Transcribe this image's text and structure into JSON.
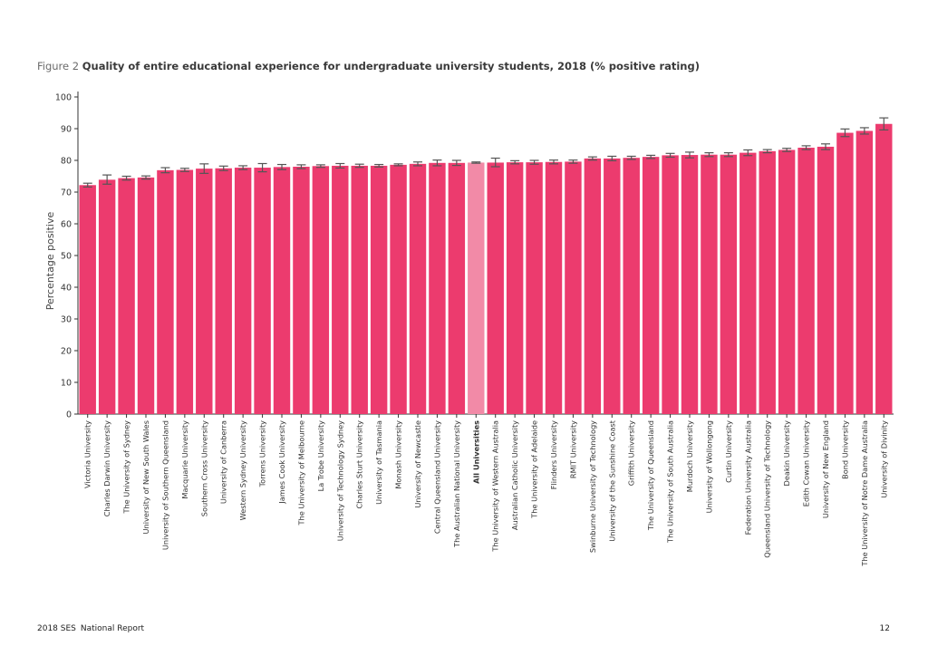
{
  "figure": {
    "number": "Figure 2",
    "title": "Quality of entire educational experience for undergraduate university students, 2018 (% positive rating)"
  },
  "footer": {
    "report": "2018 SES",
    "subtitle": "National Report",
    "page": "12"
  },
  "colors": {
    "bar": "#ec3b6e",
    "highlight": "#f28aa7",
    "error_bar": "#555555",
    "axis": "#333333"
  },
  "chart_data": {
    "type": "bar",
    "ylabel": "Percentage positive",
    "ylim": [
      0,
      100
    ],
    "yticks": [
      0,
      10,
      20,
      30,
      40,
      50,
      60,
      70,
      80,
      90,
      100
    ],
    "grid": false,
    "highlight_category": "All Universities",
    "categories": [
      "Victoria University",
      "Charles Darwin University",
      "The University of Sydney",
      "University of New South Wales",
      "University of Southern Queensland",
      "Macquarie University",
      "Southern Cross University",
      "University of Canberra",
      "Western Sydney University",
      "Torrens University",
      "James Cook University",
      "The University of Melbourne",
      "La Trobe University",
      "University of Technology Sydney",
      "Charles Sturt University",
      "University of Tasmania",
      "Monash University",
      "University of Newcastle",
      "Central Queensland University",
      "The Australian National University",
      "All Universities",
      "The University of Western Australia",
      "Australian Catholic University",
      "The University of Adelaide",
      "Flinders University",
      "RMIT University",
      "Swinburne University of Technology",
      "University of the Sunshine Coast",
      "Griffith University",
      "The University of Queensland",
      "The University of South Australia",
      "Murdoch University",
      "University of Wollongong",
      "Curtin University",
      "Federation University Australia",
      "Queensland University of Technology",
      "Deakin University",
      "Edith Cowan University",
      "University of New England",
      "Bond University",
      "The University of Notre Dame Australia",
      "University of Divinity"
    ],
    "values": [
      72.2,
      73.9,
      74.4,
      74.6,
      76.9,
      77.0,
      77.4,
      77.5,
      77.7,
      77.7,
      77.9,
      78.0,
      78.2,
      78.3,
      78.3,
      78.3,
      78.6,
      78.9,
      79.2,
      79.2,
      79.3,
      79.3,
      79.4,
      79.4,
      79.5,
      79.6,
      80.6,
      80.6,
      80.8,
      81.1,
      81.6,
      81.7,
      81.8,
      81.8,
      82.4,
      82.9,
      83.3,
      84.0,
      84.3,
      88.7,
      89.3,
      91.5
    ],
    "error_low": [
      71.6,
      72.5,
      73.8,
      74.1,
      76.1,
      76.5,
      75.9,
      76.8,
      77.1,
      76.4,
      77.1,
      77.4,
      77.8,
      77.6,
      77.8,
      77.9,
      78.3,
      78.3,
      78.3,
      78.4,
      79.1,
      78.0,
      78.9,
      78.8,
      78.9,
      79.1,
      80.1,
      79.9,
      80.3,
      80.6,
      81.0,
      80.8,
      81.2,
      81.2,
      81.5,
      82.4,
      82.8,
      83.4,
      83.4,
      87.5,
      88.3,
      89.6
    ],
    "error_high": [
      72.8,
      75.4,
      75.0,
      75.1,
      77.7,
      77.5,
      78.9,
      78.2,
      78.3,
      79.0,
      78.7,
      78.6,
      78.6,
      79.0,
      78.8,
      78.7,
      78.9,
      79.5,
      80.1,
      80.0,
      79.5,
      80.7,
      79.9,
      80.0,
      80.1,
      80.1,
      81.1,
      81.3,
      81.3,
      81.6,
      82.2,
      82.6,
      82.4,
      82.4,
      83.3,
      83.4,
      83.8,
      84.6,
      85.2,
      89.9,
      90.3,
      93.4
    ]
  }
}
